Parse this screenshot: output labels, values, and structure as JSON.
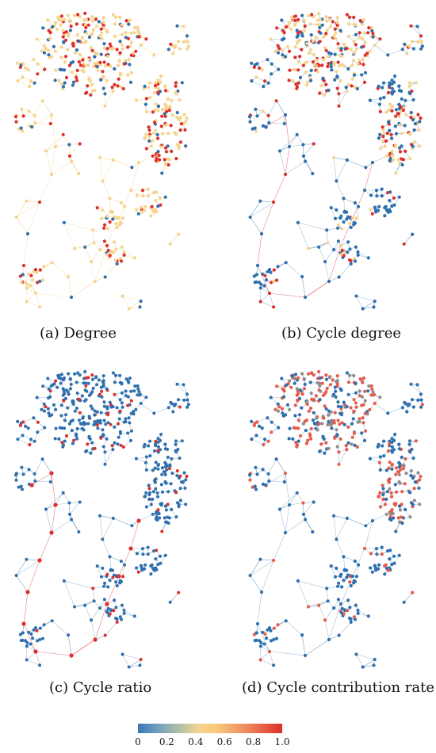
{
  "panels": [
    {
      "id": "a",
      "caption": "(a)  Degree",
      "node_color_mix": {
        "primary": "#f6d48e",
        "secondary": "#2e6fae",
        "highlight": "#dd2f2c"
      }
    },
    {
      "id": "b",
      "caption": "(b)  Cycle degree",
      "node_color_mix": {
        "primary": "#2e6fae",
        "secondary": "#f6d48e",
        "highlight": "#dd2f2c"
      }
    },
    {
      "id": "c",
      "caption": "(c)  Cycle ratio",
      "node_color_mix": {
        "primary": "#2e6fae",
        "secondary": "#6a9ac0",
        "highlight": "#dd2f2c"
      }
    },
    {
      "id": "d",
      "caption": "(d)  Cycle contribution rate",
      "node_color_mix": {
        "primary": "#2e6fae",
        "secondary": "#e85a4a",
        "highlight": "#dd2f2c"
      }
    }
  ],
  "colorbar": {
    "ticks": [
      "0",
      "0.2",
      "0.4",
      "0.6",
      "0.8",
      "1.0"
    ],
    "colors": [
      "#3b78b5",
      "#f3d48f",
      "#dd2f2c"
    ]
  }
}
